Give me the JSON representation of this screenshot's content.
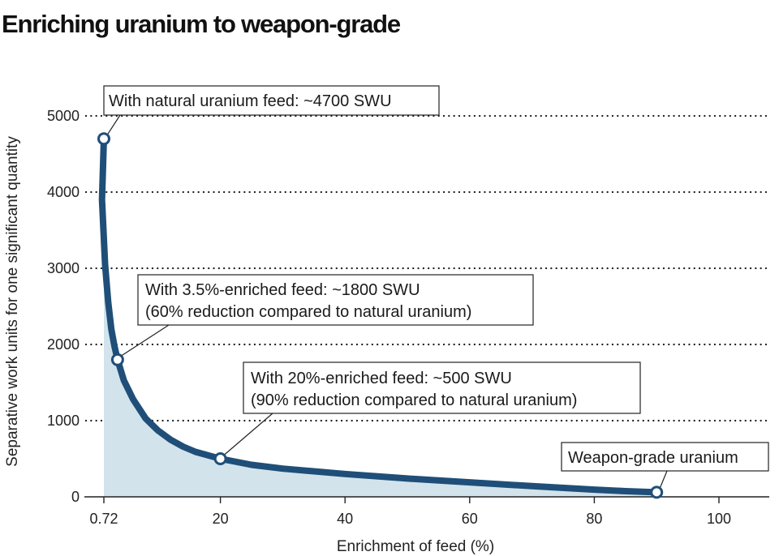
{
  "chart_data": {
    "type": "area",
    "title": "Enriching uranium to weapon-grade",
    "xlabel": "Enrichment of feed (%)",
    "ylabel": "Separative work units for one significant quantity",
    "xlim": [
      0,
      100
    ],
    "ylim": [
      0,
      5000
    ],
    "x_ticks": [
      {
        "value": 0.72,
        "label": "0.72"
      },
      {
        "value": 20,
        "label": "20"
      },
      {
        "value": 40,
        "label": "40"
      },
      {
        "value": 60,
        "label": "60"
      },
      {
        "value": 80,
        "label": "80"
      },
      {
        "value": 100,
        "label": "100"
      }
    ],
    "y_ticks": [
      0,
      1000,
      2000,
      3000,
      4000,
      5000
    ],
    "grid": "horizontal dotted",
    "series": [
      {
        "x": [
          0.72,
          1.0,
          1.5,
          2.0,
          2.5,
          3.0,
          3.5,
          4.5,
          6,
          8,
          10,
          12,
          14,
          16,
          20,
          25,
          30,
          40,
          50,
          60,
          70,
          80,
          85,
          90
        ],
        "y": [
          4700,
          3900,
          3050,
          2550,
          2200,
          1980,
          1800,
          1530,
          1280,
          1030,
          870,
          750,
          660,
          590,
          500,
          420,
          370,
          300,
          240,
          190,
          140,
          95,
          75,
          60
        ]
      }
    ],
    "highlighted_points": [
      {
        "x": 0.72,
        "y": 4700
      },
      {
        "x": 3.5,
        "y": 1800
      },
      {
        "x": 20,
        "y": 500
      },
      {
        "x": 90,
        "y": 60
      }
    ],
    "annotations": [
      {
        "lines": [
          "With natural uranium feed: ~4700 SWU"
        ]
      },
      {
        "lines": [
          "With 3.5%-enriched feed: ~1800 SWU",
          "(60% reduction compared to natural uranium)"
        ]
      },
      {
        "lines": [
          "With 20%-enriched feed: ~500 SWU",
          "(90% reduction compared to natural uranium)"
        ]
      },
      {
        "lines": [
          "Weapon-grade uranium"
        ]
      }
    ],
    "colors": {
      "line": "#1f4f78",
      "fill": "#d3e3ec",
      "grid": "#1a1a1a"
    }
  }
}
